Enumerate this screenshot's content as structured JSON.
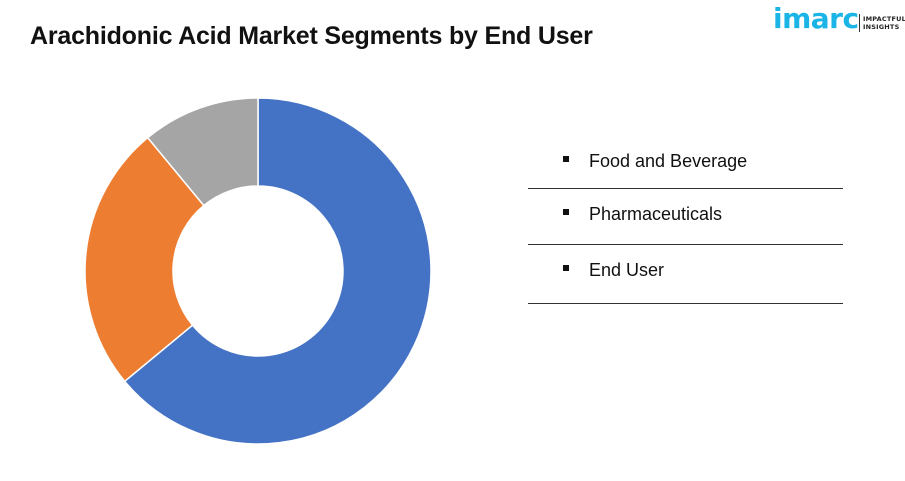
{
  "header": {
    "title": "Arachidonic Acid Market Segments by End User"
  },
  "logo": {
    "word": "imarc",
    "tagline_line1": "IMPACTFUL",
    "tagline_line2": "INSIGHTS",
    "color": "#1ab5e6"
  },
  "chart_data": {
    "type": "pie",
    "variant": "donut",
    "title": "Arachidonic Acid Market Segments by End User",
    "categories": [
      "Food and Beverage",
      "Pharmaceuticals",
      "End User"
    ],
    "values": [
      64,
      25,
      11
    ],
    "colors": [
      "#4472c4",
      "#ed7d31",
      "#a5a5a5"
    ],
    "start_angle_deg": 0,
    "direction": "clockwise",
    "legend_position": "right"
  }
}
